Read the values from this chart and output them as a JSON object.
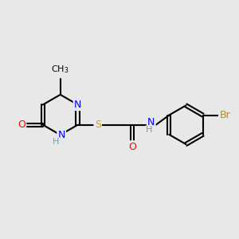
{
  "bg_color": "#e8e8e8",
  "bond_color": "#000000",
  "atom_colors": {
    "N": "#0000ff",
    "O": "#ff0000",
    "S": "#ccaa00",
    "Br": "#cc8800",
    "C": "#000000",
    "H": "#7799aa"
  },
  "font_size": 9,
  "figsize": [
    3.0,
    3.0
  ],
  "dpi": 100
}
